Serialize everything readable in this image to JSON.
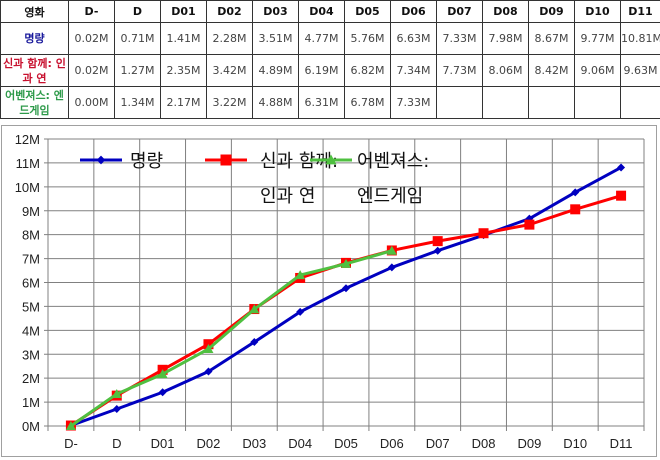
{
  "table": {
    "header_label": "영화",
    "columns": [
      "D-",
      "D",
      "D01",
      "D02",
      "D03",
      "D04",
      "D05",
      "D06",
      "D07",
      "D08",
      "D09",
      "D10",
      "D11"
    ],
    "rows": [
      {
        "name": "명량",
        "color": "#1a1a9c",
        "values": [
          "0.02M",
          "0.71M",
          "1.41M",
          "2.28M",
          "3.51M",
          "4.77M",
          "5.76M",
          "6.63M",
          "7.33M",
          "7.98M",
          "8.67M",
          "9.77M",
          "10.81M"
        ]
      },
      {
        "name": "신과 함께: 인과 연",
        "color": "#c8102e",
        "values": [
          "0.02M",
          "1.27M",
          "2.35M",
          "3.42M",
          "4.89M",
          "6.19M",
          "6.82M",
          "7.34M",
          "7.73M",
          "8.06M",
          "8.42M",
          "9.06M",
          "9.63M"
        ]
      },
      {
        "name": "어벤져스: 엔드게임",
        "color": "#2e9a4a",
        "values": [
          "0.00M",
          "1.34M",
          "2.17M",
          "3.22M",
          "4.88M",
          "6.31M",
          "6.78M",
          "7.33M",
          "",
          "",
          "",
          "",
          ""
        ]
      }
    ]
  },
  "chart_data": {
    "type": "line",
    "title": "",
    "xlabel": "",
    "ylabel": "",
    "categories": [
      "D-",
      "D",
      "D01",
      "D02",
      "D03",
      "D04",
      "D05",
      "D06",
      "D07",
      "D08",
      "D09",
      "D10",
      "D11"
    ],
    "y_ticks": [
      "0M",
      "1M",
      "2M",
      "3M",
      "4M",
      "5M",
      "6M",
      "7M",
      "8M",
      "9M",
      "10M",
      "11M",
      "12M"
    ],
    "ylim": [
      0,
      12
    ],
    "grid": true,
    "legend_position": "top-left-inside",
    "series": [
      {
        "name": "명량",
        "color": "#0000c0",
        "marker": "diamond",
        "values": [
          0.02,
          0.71,
          1.41,
          2.28,
          3.51,
          4.77,
          5.76,
          6.63,
          7.33,
          7.98,
          8.67,
          9.77,
          10.81
        ]
      },
      {
        "name": "신과 함께: 인과 연",
        "color": "#ff0000",
        "marker": "square",
        "values": [
          0.02,
          1.27,
          2.35,
          3.42,
          4.89,
          6.19,
          6.82,
          7.34,
          7.73,
          8.06,
          8.42,
          9.06,
          9.63
        ]
      },
      {
        "name": "어벤져스: 엔드게임",
        "color": "#4fc040",
        "marker": "triangle",
        "values": [
          0.0,
          1.34,
          2.17,
          3.22,
          4.88,
          6.31,
          6.78,
          7.33
        ]
      }
    ]
  },
  "legend": {
    "items": [
      {
        "line1": "명량",
        "line2": ""
      },
      {
        "line1": "신과 함께:",
        "line2": "인과 연"
      },
      {
        "line1": "어벤져스:",
        "line2": "엔드게임"
      }
    ]
  }
}
